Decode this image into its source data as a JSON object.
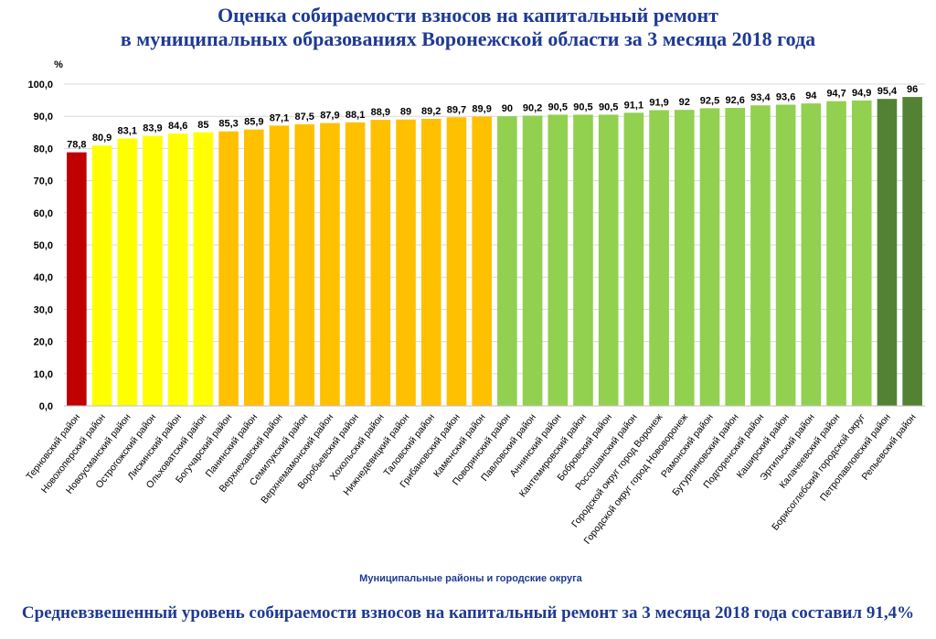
{
  "chart_data": {
    "type": "bar",
    "title_line1": "Оценка собираемости взносов на капитальный ремонт",
    "title_line2": "в муниципальных образованиях Воронежской области за 3 месяца 2018 года",
    "ylabel": "%",
    "xlabel": "Муниципальные районы и городские округа",
    "ylim": [
      0,
      100
    ],
    "yticks": [
      "0,0",
      "10,0",
      "20,0",
      "30,0",
      "40,0",
      "50,0",
      "60,0",
      "70,0",
      "80,0",
      "90,0",
      "100,0"
    ],
    "categories": [
      "Терновский район",
      "Новохоперский район",
      "Новоусманский район",
      "Острогожский район",
      "Лискинский район",
      "Ольховатский район",
      "Богучарский район",
      "Панинский район",
      "Верхнехавский район",
      "Семилукский район",
      "Верхнемамонский район",
      "Воробьевский район",
      "Хохольский район",
      "Нижнедевицкий район",
      "Таловский район",
      "Грибановский район",
      "Каменский район",
      "Поворинский район",
      "Павловский район",
      "Аннинский район",
      "Кантемировский район",
      "Бобровский район",
      "Россошанский район",
      "Городской округ город Воронеж",
      "Городской округ город Нововоронеж",
      "Рамонский район",
      "Бутурлиновский район",
      "Подгоренский район",
      "Каширский район",
      "Эртильский район",
      "Калачеевский район",
      "Борисоглебский городской округ",
      "Петропавловский район",
      "Репьевский район"
    ],
    "values": [
      78.8,
      80.9,
      83.1,
      83.9,
      84.6,
      85,
      85.3,
      85.9,
      87.1,
      87.5,
      87.9,
      88.1,
      88.9,
      89,
      89.2,
      89.7,
      89.9,
      90,
      90.2,
      90.5,
      90.5,
      90.5,
      91.1,
      91.9,
      92,
      92.5,
      92.6,
      93.4,
      93.6,
      94,
      94.7,
      94.9,
      95.4,
      96
    ],
    "value_labels": [
      "78,8",
      "80,9",
      "83,1",
      "83,9",
      "84,6",
      "85",
      "85,3",
      "85,9",
      "87,1",
      "87,5",
      "87,9",
      "88,1",
      "88,9",
      "89",
      "89,2",
      "89,7",
      "89,9",
      "90",
      "90,2",
      "90,5",
      "90,5",
      "90,5",
      "91,1",
      "91,9",
      "92",
      "92,5",
      "92,6",
      "93,4",
      "93,6",
      "94",
      "94,7",
      "94,9",
      "95,4",
      "96"
    ],
    "bar_colors": [
      "#c00000",
      "#ffff00",
      "#ffff00",
      "#ffff00",
      "#ffff00",
      "#ffff00",
      "#ffc000",
      "#ffc000",
      "#ffc000",
      "#ffc000",
      "#ffc000",
      "#ffc000",
      "#ffc000",
      "#ffc000",
      "#ffc000",
      "#ffc000",
      "#ffc000",
      "#92d050",
      "#92d050",
      "#92d050",
      "#92d050",
      "#92d050",
      "#92d050",
      "#92d050",
      "#92d050",
      "#92d050",
      "#92d050",
      "#92d050",
      "#92d050",
      "#92d050",
      "#92d050",
      "#92d050",
      "#548235",
      "#548235"
    ],
    "grid": true,
    "legend": "none"
  },
  "footer_text": "Средневзвешенный уровень собираемости взносов на капитальный ремонт за 3 месяца 2018 года составил 91,4%"
}
